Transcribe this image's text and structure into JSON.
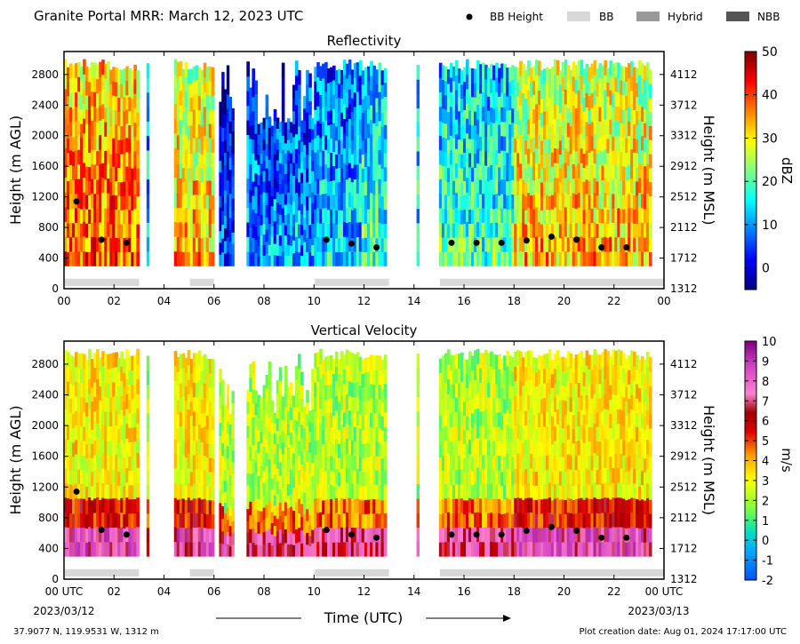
{
  "header": {
    "title": "Granite Portal MRR:  March 12, 2023 UTC",
    "legend": [
      {
        "label": "BB Height",
        "marker": "dot",
        "color": "#000000"
      },
      {
        "label": "BB",
        "marker": "box",
        "color": "#d8d8d8"
      },
      {
        "label": "Hybrid",
        "marker": "box",
        "color": "#999999"
      },
      {
        "label": "NBB",
        "marker": "box",
        "color": "#555555"
      }
    ]
  },
  "footer": {
    "location": "37.9077 N, 119.9531 W, 1312 m",
    "creation": "Plot creation date: Aug 01, 2024 17:17:00 UTC",
    "xlabel": "Time (UTC)"
  },
  "chart_data": [
    {
      "type": "heatmap",
      "title": "Reflectivity",
      "ylabel": "Height (m AGL)",
      "ylabel_right": "Height (m MSL)",
      "ylim": [
        0,
        3100
      ],
      "xlim": [
        0,
        24
      ],
      "yticks": [
        0,
        400,
        800,
        1200,
        1600,
        2000,
        2400,
        2800
      ],
      "yticks_right": [
        "1312",
        "1712",
        "2112",
        "2512",
        "2912",
        "3312",
        "3712",
        "4112"
      ],
      "xticks": [
        "00",
        "02",
        "04",
        "06",
        "08",
        "10",
        "12",
        "14",
        "16",
        "18",
        "20",
        "22",
        "00"
      ],
      "colorbar": {
        "label": "dBZ",
        "range": [
          -5,
          50
        ],
        "ticks": [
          0,
          10,
          20,
          30,
          40,
          50
        ],
        "colormap": "jet"
      },
      "bb_height": {
        "times": [
          0.5,
          1.5,
          2.5,
          10.5,
          11.5,
          12.5,
          15.5,
          16.5,
          17.5,
          18.5,
          19.5,
          20.5,
          21.5,
          22.5
        ],
        "heights": [
          1140,
          640,
          600,
          640,
          590,
          540,
          600,
          600,
          600,
          630,
          680,
          640,
          540,
          540
        ]
      },
      "bb_periods": [
        [
          0,
          3
        ],
        [
          5,
          6
        ],
        [
          10,
          13
        ],
        [
          15,
          24
        ]
      ],
      "echo_periods": [
        {
          "start": 0.0,
          "end": 3.0,
          "level": 0.8
        },
        {
          "start": 3.3,
          "end": 3.4,
          "level": 0.4
        },
        {
          "start": 4.4,
          "end": 6.0,
          "level": 0.7
        },
        {
          "start": 6.2,
          "end": 6.8,
          "level": 0.2
        },
        {
          "start": 7.3,
          "end": 10.0,
          "level": 0.3
        },
        {
          "start": 10.0,
          "end": 11.9,
          "level": 0.35
        },
        {
          "start": 11.9,
          "end": 12.9,
          "level": 0.45
        },
        {
          "start": 14.1,
          "end": 14.2,
          "level": 0.4
        },
        {
          "start": 15.0,
          "end": 18.0,
          "level": 0.45
        },
        {
          "start": 18.0,
          "end": 23.5,
          "level": 0.7
        }
      ]
    },
    {
      "type": "heatmap",
      "title": "Vertical Velocity",
      "ylabel": "Height (m AGL)",
      "ylabel_right": "Height (m MSL)",
      "ylim": [
        0,
        3100
      ],
      "xlim": [
        0,
        24
      ],
      "yticks": [
        0,
        400,
        800,
        1200,
        1600,
        2000,
        2400,
        2800
      ],
      "yticks_right": [
        "1312",
        "1712",
        "2112",
        "2512",
        "2912",
        "3312",
        "3712",
        "4112"
      ],
      "xticks": [
        "00 UTC",
        "02",
        "04",
        "06",
        "08",
        "10",
        "12",
        "14",
        "16",
        "18",
        "20",
        "22",
        "00 UTC"
      ],
      "xdates": [
        "2023/03/12",
        "2023/03/13"
      ],
      "colorbar": {
        "label": "m/s",
        "range": [
          -2,
          10
        ],
        "ticks": [
          -2,
          -1,
          0,
          1,
          2,
          3,
          4,
          5,
          6,
          7,
          8,
          9,
          10
        ],
        "colormap": "velocity"
      },
      "bb_height": {
        "times": [
          0.5,
          1.5,
          2.5,
          10.5,
          11.5,
          12.5,
          15.5,
          16.5,
          17.5,
          18.5,
          19.5,
          20.5,
          21.5,
          22.5
        ],
        "heights": [
          1140,
          640,
          580,
          640,
          580,
          540,
          580,
          580,
          580,
          630,
          680,
          630,
          540,
          540
        ]
      },
      "bb_periods": [
        [
          0,
          3
        ],
        [
          5,
          6
        ],
        [
          10,
          13
        ],
        [
          15,
          24
        ]
      ]
    }
  ]
}
